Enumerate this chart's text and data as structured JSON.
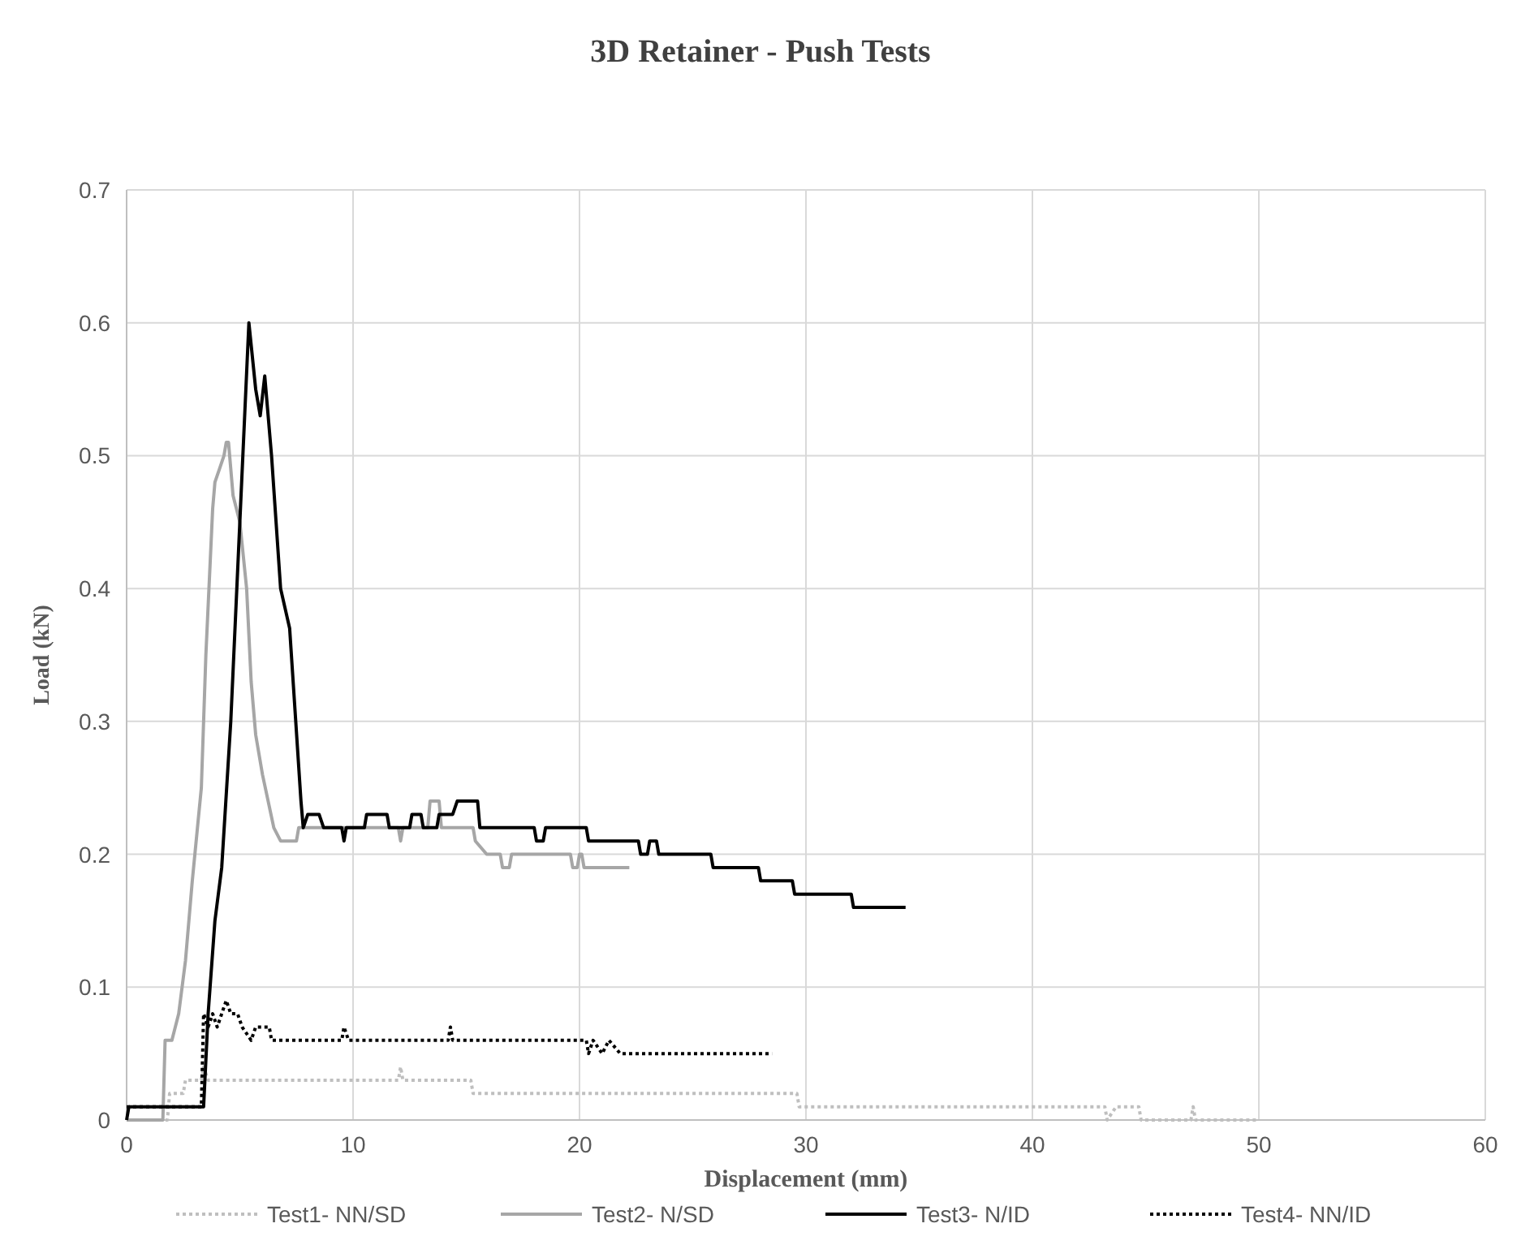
{
  "chart_data": {
    "type": "line",
    "title": "3D Retainer - Push Tests",
    "xlabel": "Displacement (mm)",
    "ylabel": "Load (kN)",
    "xlim": [
      0,
      60
    ],
    "xticks": [
      0,
      10,
      20,
      30,
      40,
      50,
      60
    ],
    "ylim": [
      0,
      0.7
    ],
    "yticks": [
      0,
      0.1,
      0.2,
      0.3,
      0.4,
      0.5,
      0.6,
      0.7
    ],
    "grid": true,
    "legend": "bottom",
    "series": [
      {
        "name": "Test1- NN/SD",
        "color": "#bfbfbf",
        "line_style": "dotted",
        "x": [
          0,
          1.8,
          1.9,
          2.5,
          2.6,
          3.3,
          3.4,
          3.6,
          12.0,
          12.1,
          12.2,
          15.2,
          15.3,
          29.6,
          29.7,
          43.2,
          43.3,
          43.7,
          44.7,
          44.8,
          47.0,
          47.1,
          47.2,
          50.0
        ],
        "values": [
          0,
          0,
          0.02,
          0.02,
          0.03,
          0.03,
          0.04,
          0.03,
          0.03,
          0.04,
          0.03,
          0.03,
          0.02,
          0.02,
          0.01,
          0.01,
          0,
          0.01,
          0.01,
          0,
          0,
          0.01,
          0,
          0
        ]
      },
      {
        "name": "Test2- N/SD",
        "color": "#a6a6a6",
        "line_style": "solid",
        "x": [
          0,
          1.6,
          1.7,
          2.0,
          2.3,
          2.6,
          2.9,
          3.3,
          3.5,
          3.8,
          3.9,
          4.1,
          4.3,
          4.4,
          4.5,
          4.7,
          5.0,
          5.3,
          5.5,
          5.7,
          6.0,
          6.5,
          6.8,
          7.5,
          7.6,
          12.0,
          12.1,
          12.2,
          13.3,
          13.4,
          13.8,
          13.9,
          15.3,
          15.4,
          15.9,
          16.5,
          16.6,
          16.9,
          17.0,
          19.6,
          19.7,
          19.9,
          20.0,
          20.1,
          20.2,
          22.2
        ],
        "values": [
          0,
          0,
          0.06,
          0.06,
          0.08,
          0.12,
          0.18,
          0.25,
          0.35,
          0.46,
          0.48,
          0.49,
          0.5,
          0.51,
          0.51,
          0.47,
          0.45,
          0.4,
          0.33,
          0.29,
          0.26,
          0.22,
          0.21,
          0.21,
          0.22,
          0.22,
          0.21,
          0.22,
          0.22,
          0.24,
          0.24,
          0.22,
          0.22,
          0.21,
          0.2,
          0.2,
          0.19,
          0.19,
          0.2,
          0.2,
          0.19,
          0.19,
          0.2,
          0.2,
          0.19,
          0.19
        ]
      },
      {
        "name": "Test3- N/ID",
        "color": "#000000",
        "line_style": "solid",
        "x": [
          0,
          0.1,
          3.4,
          3.6,
          3.9,
          4.2,
          4.6,
          5.0,
          5.4,
          5.7,
          5.9,
          6.1,
          6.4,
          6.8,
          7.2,
          7.7,
          7.8,
          8.0,
          8.5,
          8.7,
          9.5,
          9.6,
          9.7,
          10.5,
          10.6,
          11.5,
          11.6,
          12.5,
          12.6,
          13.0,
          13.1,
          13.7,
          13.8,
          14.4,
          14.6,
          15.5,
          15.6,
          18.0,
          18.1,
          18.4,
          18.5,
          20.3,
          20.4,
          22.6,
          22.7,
          23.0,
          23.1,
          23.4,
          23.5,
          25.8,
          25.9,
          27.9,
          28.0,
          29.4,
          29.5,
          32.0,
          32.1,
          34.4
        ],
        "values": [
          0,
          0.01,
          0.01,
          0.08,
          0.15,
          0.19,
          0.3,
          0.45,
          0.6,
          0.55,
          0.53,
          0.56,
          0.5,
          0.4,
          0.37,
          0.24,
          0.22,
          0.23,
          0.23,
          0.22,
          0.22,
          0.21,
          0.22,
          0.22,
          0.23,
          0.23,
          0.22,
          0.22,
          0.23,
          0.23,
          0.22,
          0.22,
          0.23,
          0.23,
          0.24,
          0.24,
          0.22,
          0.22,
          0.21,
          0.21,
          0.22,
          0.22,
          0.21,
          0.21,
          0.2,
          0.2,
          0.21,
          0.21,
          0.2,
          0.2,
          0.19,
          0.19,
          0.18,
          0.18,
          0.17,
          0.17,
          0.16,
          0.16
        ]
      },
      {
        "name": "Test4- NN/ID",
        "color": "#000000",
        "line_style": "dotted",
        "x": [
          0,
          3.3,
          3.4,
          3.6,
          3.8,
          4.0,
          4.2,
          4.4,
          4.6,
          4.9,
          5.1,
          5.5,
          5.7,
          6.3,
          6.4,
          9.5,
          9.6,
          9.8,
          14.2,
          14.3,
          14.4,
          20.3,
          20.4,
          20.6,
          21.0,
          21.3,
          21.8,
          28.5
        ],
        "values": [
          0.01,
          0.01,
          0.08,
          0.07,
          0.08,
          0.07,
          0.08,
          0.09,
          0.08,
          0.08,
          0.07,
          0.06,
          0.07,
          0.07,
          0.06,
          0.06,
          0.07,
          0.06,
          0.06,
          0.07,
          0.06,
          0.06,
          0.05,
          0.06,
          0.05,
          0.06,
          0.05,
          0.05
        ]
      }
    ]
  }
}
